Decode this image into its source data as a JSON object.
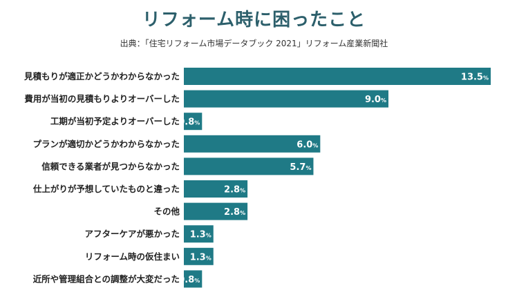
{
  "header": {
    "title": "リフォーム時に困ったこと",
    "source": "出典：「住宅リフォーム市場データブック 2021」リフォーム産業新聞社"
  },
  "colors": {
    "bar": "#1f7a86",
    "label_text": "#ffffff"
  },
  "chart_data": {
    "type": "bar",
    "orientation": "horizontal",
    "title": "リフォーム時に困ったこと",
    "xlabel": "",
    "ylabel": "",
    "unit": "%",
    "xlim": [
      0,
      13.5
    ],
    "grid": false,
    "categories": [
      "見積もりが適正かどうかわからなかった",
      "費用が当初の見積もりよりオーバーした",
      "工期が当初予定よりオーバーした",
      "プランが適切かどうかわからなかった",
      "信頼できる業者が見つからなかった",
      "仕上がりが予想していたものと違った",
      "その他",
      "アフターケアが悪かった",
      "リフォーム時の仮住まい",
      "近所や管理組合との調整が大変だった"
    ],
    "values": [
      13.5,
      9.0,
      0.8,
      6.0,
      5.7,
      2.8,
      2.8,
      1.3,
      1.3,
      0.8
    ],
    "value_labels": [
      "13.5",
      "9.0",
      "0.8",
      "6.0",
      "5.7",
      "2.8",
      "2.8",
      "1.3",
      "1.3",
      "0.8"
    ]
  }
}
